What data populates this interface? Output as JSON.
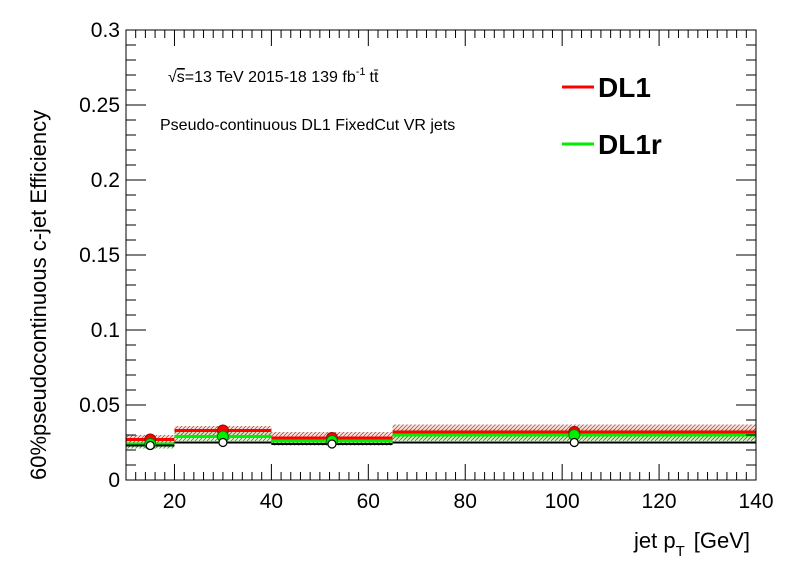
{
  "chart_data": {
    "type": "scatter",
    "xlabel_main": "jet p",
    "xlabel_sub": "T",
    "xlabel_unit": "[GeV]",
    "ylabel": "60%pseudocontinuous  c-jet Efficiency",
    "xlim": [
      10,
      140
    ],
    "ylim": [
      0,
      0.3
    ],
    "x_ticks": [
      "20",
      "40",
      "60",
      "80",
      "100",
      "120",
      "140"
    ],
    "y_ticks": [
      "0",
      "0.05",
      "0.1",
      "0.15",
      "0.2",
      "0.25",
      "0.3"
    ],
    "annotation": {
      "sqrt": "√",
      "s": "s",
      "energy": "=13 TeV  2015-18  139 fb",
      "lumi_exp": "-1",
      "process": "tt̄",
      "line2": "Pseudo-continuous DL1 FixedCut VR jets"
    },
    "bins": [
      {
        "low": 10,
        "high": 20,
        "center": 15
      },
      {
        "low": 20,
        "high": 40,
        "center": 30
      },
      {
        "low": 40,
        "high": 65,
        "center": 52.5
      },
      {
        "low": 65,
        "high": 140,
        "center": 102.5
      }
    ],
    "series": [
      {
        "name": "DL1",
        "color": "#ff0000",
        "values": [
          0.027,
          0.033,
          0.028,
          0.032
        ],
        "errors": [
          0.003,
          0.003,
          0.004,
          0.005
        ]
      },
      {
        "name": "DL1r",
        "color": "#00ee00",
        "values": [
          0.024,
          0.029,
          0.026,
          0.03
        ],
        "errors": [
          0.003,
          0.003,
          0.003,
          0.004
        ]
      },
      {
        "name": "",
        "color": "#000000",
        "values": [
          0.023,
          0.025,
          0.024,
          0.025
        ],
        "errors": [
          0,
          0,
          0,
          0
        ]
      }
    ],
    "legend": {
      "position": "top-right"
    }
  }
}
